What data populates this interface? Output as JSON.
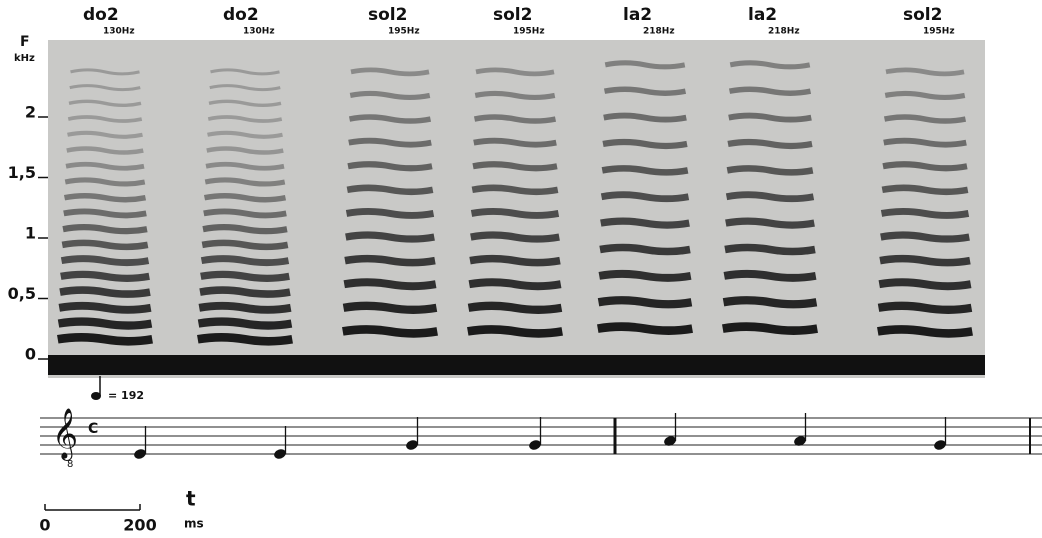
{
  "notes": [
    {
      "name": "do2",
      "freq": "130Hz"
    },
    {
      "name": "do2",
      "freq": "130Hz"
    },
    {
      "name": "sol2",
      "freq": "195Hz"
    },
    {
      "name": "sol2",
      "freq": "195Hz"
    },
    {
      "name": "la2",
      "freq": "218Hz"
    },
    {
      "name": "la2",
      "freq": "218Hz"
    },
    {
      "name": "sol2",
      "freq": "195Hz"
    }
  ],
  "y_axis": {
    "label": "F",
    "unit": "kHz",
    "ticks": [
      "0",
      "0,5",
      "1",
      "1,5",
      "2"
    ]
  },
  "tempo": "= 192",
  "time_signature": "C",
  "clef_octave": "8",
  "time_scale": {
    "ticks": [
      "0",
      "200"
    ],
    "label": "t",
    "unit": "ms"
  }
}
